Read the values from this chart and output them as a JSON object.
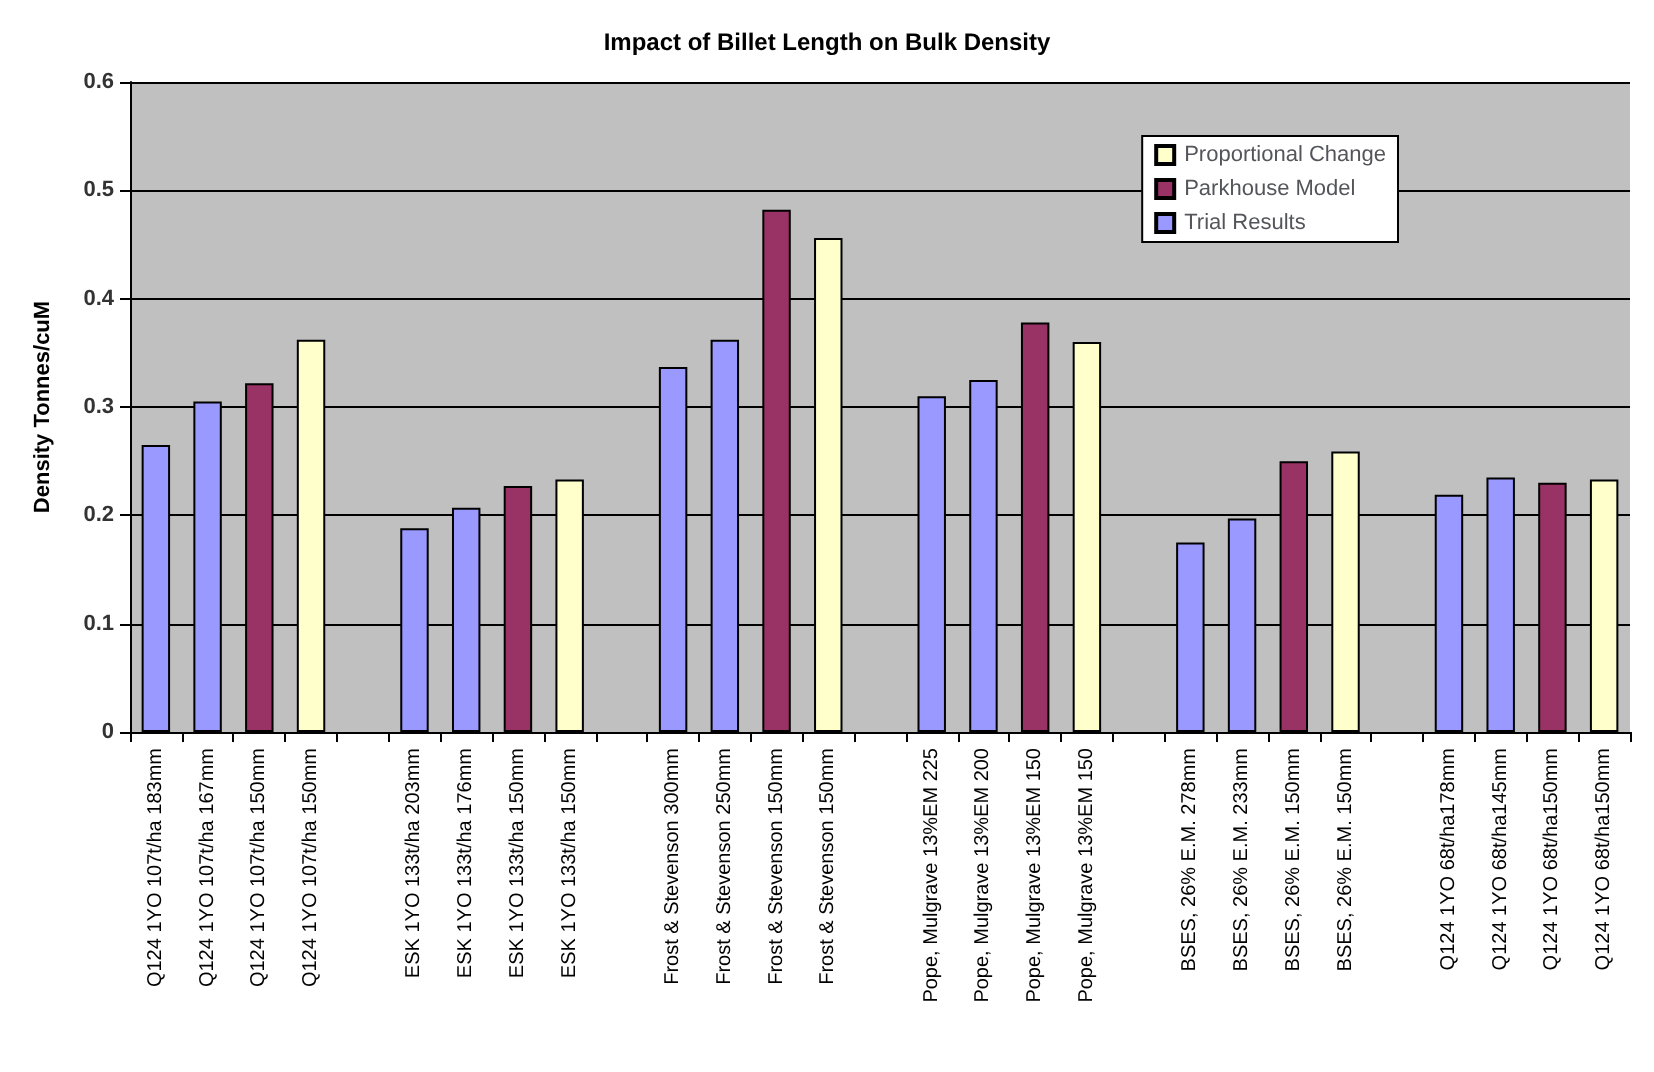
{
  "chart_data": {
    "type": "bar",
    "title": "Impact of Billet Length on Bulk Density",
    "ylabel": "Density Tonnes/cuM",
    "categories": [
      "Q124 1YO 107t/ha 183mm",
      "Q124 1YO 107t/ha 167mm",
      "Q124 1YO 107t/ha 150mm",
      "Q124 1YO 107t/ha 150mm",
      null,
      "ESK 1YO 133t/ha 203mm",
      "ESK 1YO 133t/ha 176mm",
      "ESK 1YO 133t/ha 150mm",
      "ESK 1YO 133t/ha 150mm",
      null,
      "Frost & Stevenson 300mm",
      "Frost & Stevenson 250mm",
      "Frost & Stevenson 150mm",
      "Frost & Stevenson 150mm",
      null,
      "Pope, Mulgrave 13%EM 225",
      "Pope, Mulgrave 13%EM 200",
      "Pope, Mulgrave 13%EM 150",
      "Pope, Mulgrave 13%EM 150",
      null,
      "BSES, 26% E.M. 278mm",
      "BSES, 26% E.M. 233mm",
      "BSES, 26% E.M. 150mm",
      "BSES, 26% E.M. 150mm",
      null,
      "Q124 1YO 68t/ha178mm",
      "Q124 1YO 68t/ha145mm",
      "Q124 1YO 68t/ha150mm",
      "Q124 1YO 68t/ha150mm"
    ],
    "series": [
      {
        "name": "Trial Results",
        "color": "#9999ff",
        "values": [
          0.265,
          0.305,
          null,
          null,
          null,
          0.188,
          0.207,
          null,
          null,
          null,
          0.337,
          0.362,
          null,
          null,
          null,
          0.31,
          0.325,
          null,
          null,
          null,
          0.175,
          0.197,
          null,
          null,
          null,
          0.219,
          0.235,
          null,
          null
        ]
      },
      {
        "name": "Parkhouse Model",
        "color": "#993366",
        "values": [
          null,
          null,
          0.322,
          null,
          null,
          null,
          null,
          0.227,
          null,
          null,
          null,
          null,
          0.482,
          null,
          null,
          null,
          null,
          0.378,
          null,
          null,
          null,
          null,
          0.25,
          null,
          null,
          null,
          null,
          0.23,
          null
        ]
      },
      {
        "name": "Proportional Change",
        "color": "#ffffcc",
        "values": [
          null,
          null,
          null,
          0.362,
          null,
          null,
          null,
          null,
          0.233,
          null,
          null,
          null,
          null,
          0.456,
          null,
          null,
          null,
          null,
          0.36,
          null,
          null,
          null,
          null,
          0.259,
          null,
          null,
          null,
          null,
          0.233
        ]
      }
    ],
    "ylim": [
      0,
      0.6
    ],
    "yticks": [
      0,
      0.1,
      0.2,
      0.3,
      0.4,
      0.5,
      0.6
    ],
    "grid": "y",
    "legend": "top right"
  }
}
